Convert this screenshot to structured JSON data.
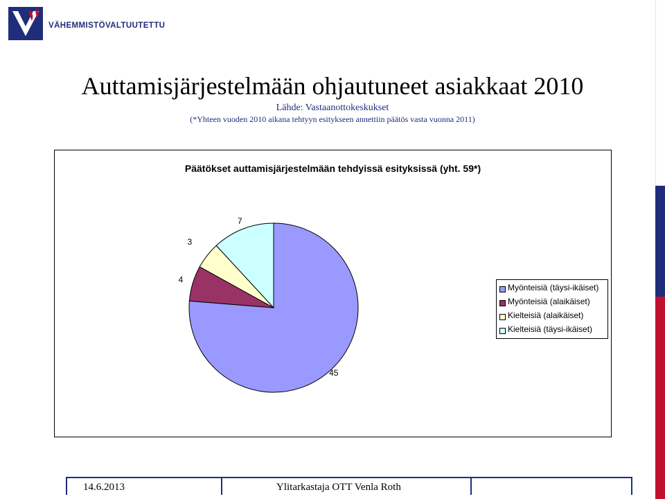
{
  "org": {
    "name": "VÄHEMMISTÖVALTUUTETTU"
  },
  "slide": {
    "title": "Auttamisjärjestelmään ohjautuneet asiakkaat 2010",
    "source": "Lähde: Vastaanottokeskukset",
    "note": "(*Yhteen vuoden 2010 aikana tehtyyn esitykseen annettiin päätös vasta vuonna 2011)"
  },
  "footer": {
    "date": "14.6.2013",
    "author": "Ylitarkastaja OTT Venla Roth"
  },
  "colors": {
    "brand_blue": "#1f2d7a",
    "brand_red": "#c0102e"
  },
  "chart_data": {
    "type": "pie",
    "title": "Päätökset auttamisjärjestelmään tehdyissä esityksissä (yht. 59*)",
    "legend_position": "right",
    "series": [
      {
        "name": "Myönteisiä (täysi-ikäiset)",
        "value": 45,
        "color": "#9999ff"
      },
      {
        "name": "Myönteisiä (alaikäiset)",
        "value": 4,
        "color": "#993366"
      },
      {
        "name": "Kielteisiä (alaikäiset)",
        "value": 3,
        "color": "#ffffcc"
      },
      {
        "name": "Kielteisiä (täysi-ikäiset)",
        "value": 7,
        "color": "#ccffff"
      }
    ]
  }
}
